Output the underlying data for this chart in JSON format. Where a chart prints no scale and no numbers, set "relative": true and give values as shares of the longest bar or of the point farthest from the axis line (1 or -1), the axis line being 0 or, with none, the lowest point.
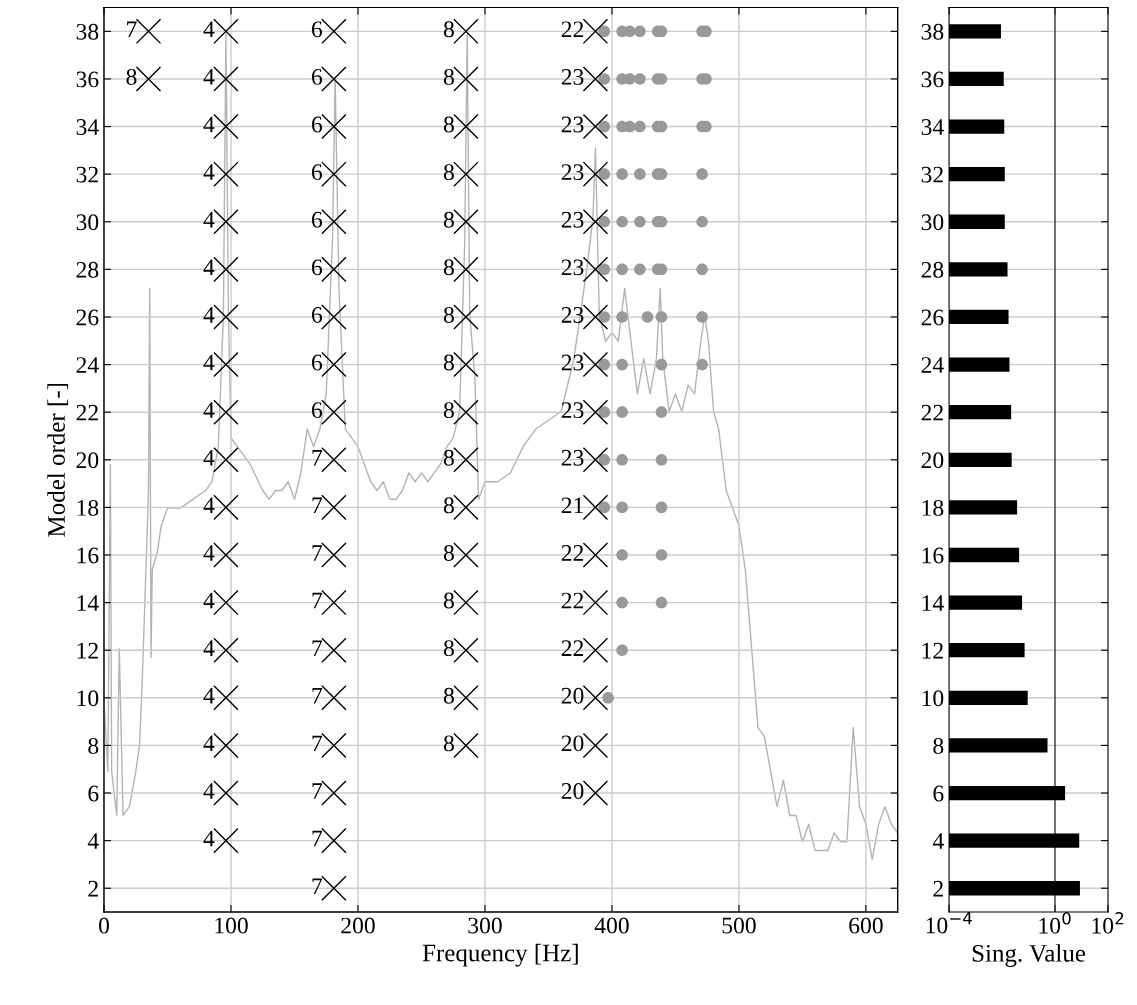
{
  "chart_data": [
    {
      "type": "scatter",
      "xlabel": "Frequency [Hz]",
      "ylabel": "Model order [-]",
      "xlim": [
        0,
        625
      ],
      "xticks": [
        0,
        100,
        200,
        300,
        400,
        500,
        600
      ],
      "ylim": [
        1,
        39
      ],
      "yticks": [
        2,
        4,
        6,
        8,
        10,
        12,
        14,
        16,
        18,
        20,
        22,
        24,
        26,
        28,
        30,
        32,
        34,
        36,
        38
      ],
      "grid": true,
      "series": [
        {
          "marker": "circle",
          "color": "#999999",
          "x": [
            394,
            408,
            414,
            422,
            436,
            439,
            471,
            474,
            394,
            408,
            414,
            422,
            436,
            439,
            471,
            474,
            394,
            408,
            414,
            422,
            436,
            439,
            471,
            474,
            394,
            408,
            422,
            436,
            439,
            471,
            394,
            408,
            422,
            436,
            439,
            471,
            394,
            408,
            422,
            436,
            439,
            471,
            394,
            408,
            428,
            439,
            471,
            394,
            408,
            439,
            471,
            394,
            408,
            439,
            394,
            408,
            439,
            394,
            408,
            439,
            408,
            439,
            408,
            439,
            408,
            397
          ],
          "values": [
            38,
            38,
            38,
            38,
            38,
            38,
            38,
            38,
            36,
            36,
            36,
            36,
            36,
            36,
            36,
            36,
            34,
            34,
            34,
            34,
            34,
            34,
            34,
            34,
            32,
            32,
            32,
            32,
            32,
            32,
            30,
            30,
            30,
            30,
            30,
            30,
            28,
            28,
            28,
            28,
            28,
            28,
            26,
            26,
            26,
            26,
            26,
            24,
            24,
            24,
            24,
            22,
            22,
            22,
            20,
            20,
            20,
            18,
            18,
            18,
            16,
            16,
            14,
            14,
            12,
            10
          ]
        },
        {
          "marker": "cross",
          "color": "#000000",
          "x": [
            35,
            35
          ],
          "values": [
            38,
            36
          ]
        },
        {
          "marker": "cross",
          "color": "#000000",
          "x": [
            96,
            96,
            96,
            96,
            96,
            96,
            96,
            96,
            96,
            96,
            96,
            96,
            96,
            96,
            96,
            96,
            96,
            96
          ],
          "values": [
            38,
            36,
            34,
            32,
            30,
            28,
            26,
            24,
            22,
            20,
            18,
            16,
            14,
            12,
            10,
            8,
            6,
            4
          ]
        },
        {
          "marker": "cross",
          "color": "#000000",
          "x": [
            181,
            181,
            181,
            181,
            181,
            181,
            181,
            181,
            181,
            181,
            181,
            181,
            181,
            181,
            181,
            181,
            181,
            181,
            181
          ],
          "values": [
            38,
            36,
            34,
            32,
            30,
            28,
            26,
            24,
            22,
            20,
            18,
            16,
            14,
            12,
            10,
            8,
            6,
            4,
            2
          ]
        },
        {
          "marker": "cross",
          "color": "#000000",
          "x": [
            285,
            285,
            285,
            285,
            285,
            285,
            285,
            285,
            285,
            285,
            285,
            285,
            285,
            285,
            285,
            285
          ],
          "values": [
            38,
            36,
            34,
            32,
            30,
            28,
            26,
            24,
            22,
            20,
            18,
            16,
            14,
            12,
            10,
            8
          ]
        },
        {
          "marker": "cross",
          "color": "#000000",
          "x": [
            387,
            387,
            387,
            387,
            387,
            387,
            387,
            387,
            387,
            387,
            387,
            387,
            387,
            387,
            387,
            387,
            387
          ],
          "values": [
            38,
            36,
            34,
            32,
            30,
            28,
            26,
            24,
            22,
            20,
            18,
            16,
            14,
            12,
            10,
            8,
            6
          ]
        }
      ],
      "annotations": [
        {
          "text": "7",
          "x": 35,
          "y": 38
        },
        {
          "text": "8",
          "x": 35,
          "y": 36
        },
        {
          "text": "4",
          "x": 96,
          "y": 38
        },
        {
          "text": "4",
          "x": 96,
          "y": 36
        },
        {
          "text": "4",
          "x": 96,
          "y": 34
        },
        {
          "text": "4",
          "x": 96,
          "y": 32
        },
        {
          "text": "4",
          "x": 96,
          "y": 30
        },
        {
          "text": "4",
          "x": 96,
          "y": 28
        },
        {
          "text": "4",
          "x": 96,
          "y": 26
        },
        {
          "text": "4",
          "x": 96,
          "y": 24
        },
        {
          "text": "4",
          "x": 96,
          "y": 22
        },
        {
          "text": "4",
          "x": 96,
          "y": 20
        },
        {
          "text": "4",
          "x": 96,
          "y": 18
        },
        {
          "text": "4",
          "x": 96,
          "y": 16
        },
        {
          "text": "4",
          "x": 96,
          "y": 14
        },
        {
          "text": "4",
          "x": 96,
          "y": 12
        },
        {
          "text": "4",
          "x": 96,
          "y": 10
        },
        {
          "text": "4",
          "x": 96,
          "y": 8
        },
        {
          "text": "4",
          "x": 96,
          "y": 6
        },
        {
          "text": "4",
          "x": 96,
          "y": 4
        },
        {
          "text": "6",
          "x": 181,
          "y": 38
        },
        {
          "text": "6",
          "x": 181,
          "y": 36
        },
        {
          "text": "6",
          "x": 181,
          "y": 34
        },
        {
          "text": "6",
          "x": 181,
          "y": 32
        },
        {
          "text": "6",
          "x": 181,
          "y": 30
        },
        {
          "text": "6",
          "x": 181,
          "y": 28
        },
        {
          "text": "6",
          "x": 181,
          "y": 26
        },
        {
          "text": "6",
          "x": 181,
          "y": 24
        },
        {
          "text": "6",
          "x": 181,
          "y": 22
        },
        {
          "text": "7",
          "x": 181,
          "y": 20
        },
        {
          "text": "7",
          "x": 181,
          "y": 18
        },
        {
          "text": "7",
          "x": 181,
          "y": 16
        },
        {
          "text": "7",
          "x": 181,
          "y": 14
        },
        {
          "text": "7",
          "x": 181,
          "y": 12
        },
        {
          "text": "7",
          "x": 181,
          "y": 10
        },
        {
          "text": "7",
          "x": 181,
          "y": 8
        },
        {
          "text": "7",
          "x": 181,
          "y": 6
        },
        {
          "text": "7",
          "x": 181,
          "y": 4
        },
        {
          "text": "7",
          "x": 181,
          "y": 2
        },
        {
          "text": "8",
          "x": 285,
          "y": 38
        },
        {
          "text": "8",
          "x": 285,
          "y": 36
        },
        {
          "text": "8",
          "x": 285,
          "y": 34
        },
        {
          "text": "8",
          "x": 285,
          "y": 32
        },
        {
          "text": "8",
          "x": 285,
          "y": 30
        },
        {
          "text": "8",
          "x": 285,
          "y": 28
        },
        {
          "text": "8",
          "x": 285,
          "y": 26
        },
        {
          "text": "8",
          "x": 285,
          "y": 24
        },
        {
          "text": "8",
          "x": 285,
          "y": 22
        },
        {
          "text": "8",
          "x": 285,
          "y": 20
        },
        {
          "text": "8",
          "x": 285,
          "y": 18
        },
        {
          "text": "8",
          "x": 285,
          "y": 16
        },
        {
          "text": "8",
          "x": 285,
          "y": 14
        },
        {
          "text": "8",
          "x": 285,
          "y": 12
        },
        {
          "text": "8",
          "x": 285,
          "y": 10
        },
        {
          "text": "8",
          "x": 285,
          "y": 8
        },
        {
          "text": "22",
          "x": 387,
          "y": 38
        },
        {
          "text": "23",
          "x": 387,
          "y": 36
        },
        {
          "text": "23",
          "x": 387,
          "y": 34
        },
        {
          "text": "23",
          "x": 387,
          "y": 32
        },
        {
          "text": "23",
          "x": 387,
          "y": 30
        },
        {
          "text": "23",
          "x": 387,
          "y": 28
        },
        {
          "text": "23",
          "x": 387,
          "y": 26
        },
        {
          "text": "23",
          "x": 387,
          "y": 24
        },
        {
          "text": "23",
          "x": 387,
          "y": 22
        },
        {
          "text": "23",
          "x": 387,
          "y": 20
        },
        {
          "text": "21",
          "x": 387,
          "y": 18
        },
        {
          "text": "22",
          "x": 387,
          "y": 16
        },
        {
          "text": "22",
          "x": 387,
          "y": 14
        },
        {
          "text": "22",
          "x": 387,
          "y": 12
        },
        {
          "text": "20",
          "x": 387,
          "y": 10
        },
        {
          "text": "20",
          "x": 387,
          "y": 8
        },
        {
          "text": "20",
          "x": 387,
          "y": 6
        }
      ]
    },
    {
      "type": "line",
      "relative": true,
      "tick_labels": false,
      "xlim": [
        0,
        625
      ],
      "series": [
        {
          "color": "#b3b3b3",
          "x": [
            0,
            3,
            5,
            6,
            10,
            12,
            15,
            20,
            25,
            28,
            30,
            33,
            35,
            36,
            37,
            38,
            42,
            45,
            50,
            55,
            60,
            70,
            80,
            85,
            90,
            94,
            96,
            98,
            100,
            105,
            115,
            125,
            130,
            135,
            140,
            145,
            150,
            155,
            160,
            165,
            170,
            175,
            180,
            182,
            185,
            190,
            195,
            200,
            205,
            210,
            215,
            220,
            225,
            230,
            235,
            240,
            245,
            250,
            255,
            260,
            265,
            270,
            275,
            280,
            284,
            286,
            288,
            292,
            295,
            300,
            310,
            320,
            330,
            340,
            350,
            360,
            370,
            375,
            380,
            385,
            387,
            390,
            395,
            400,
            405,
            410,
            415,
            420,
            425,
            430,
            435,
            438,
            440,
            445,
            450,
            455,
            460,
            465,
            470,
            473,
            476,
            480,
            484,
            490,
            495,
            500,
            505,
            510,
            515,
            520,
            525,
            530,
            535,
            540,
            545,
            550,
            555,
            560,
            570,
            575,
            580,
            585,
            590,
            595,
            600,
            605,
            610,
            615,
            620,
            625
          ],
          "values": [
            0.24,
            0.16,
            0.51,
            0.16,
            0.11,
            0.3,
            0.11,
            0.12,
            0.16,
            0.19,
            0.26,
            0.39,
            0.48,
            0.71,
            0.29,
            0.39,
            0.41,
            0.44,
            0.46,
            0.46,
            0.46,
            0.47,
            0.48,
            0.49,
            0.53,
            0.68,
            1.0,
            0.68,
            0.54,
            0.53,
            0.51,
            0.48,
            0.47,
            0.48,
            0.48,
            0.49,
            0.47,
            0.5,
            0.55,
            0.53,
            0.55,
            0.59,
            0.77,
            0.95,
            0.71,
            0.55,
            0.54,
            0.53,
            0.51,
            0.49,
            0.48,
            0.49,
            0.47,
            0.47,
            0.48,
            0.5,
            0.49,
            0.5,
            0.49,
            0.5,
            0.51,
            0.53,
            0.54,
            0.57,
            0.76,
            1.0,
            0.68,
            0.61,
            0.47,
            0.49,
            0.49,
            0.5,
            0.53,
            0.55,
            0.56,
            0.57,
            0.63,
            0.68,
            0.73,
            0.79,
            0.87,
            0.68,
            0.65,
            0.66,
            0.65,
            0.71,
            0.65,
            0.59,
            0.63,
            0.59,
            0.63,
            0.71,
            0.63,
            0.57,
            0.59,
            0.57,
            0.6,
            0.59,
            0.65,
            0.68,
            0.65,
            0.57,
            0.55,
            0.48,
            0.46,
            0.44,
            0.39,
            0.3,
            0.21,
            0.2,
            0.16,
            0.12,
            0.15,
            0.11,
            0.11,
            0.08,
            0.1,
            0.07,
            0.07,
            0.09,
            0.08,
            0.08,
            0.21,
            0.12,
            0.1,
            0.06,
            0.1,
            0.12,
            0.1,
            0.09
          ]
        }
      ]
    },
    {
      "type": "bar",
      "orientation": "horizontal",
      "xlabel": "Sing. Value",
      "log": "x",
      "xlim": [
        0.0001,
        100
      ],
      "xticks": [
        {
          "value": 0.0001,
          "label": "10$^{−4}$"
        },
        {
          "value": 1,
          "label": "10$^{0}$"
        },
        {
          "value": 100,
          "label": "10$^{2}$"
        }
      ],
      "grid": "y",
      "color": "#000000",
      "categories": [
        "38",
        "36",
        "34",
        "32",
        "30",
        "28",
        "26",
        "24",
        "22",
        "20",
        "18",
        "16",
        "14",
        "12",
        "10",
        "8",
        "6",
        "4",
        "2"
      ],
      "values": [
        0.009,
        0.0115,
        0.012,
        0.0126,
        0.0126,
        0.016,
        0.0175,
        0.019,
        0.022,
        0.023,
        0.037,
        0.044,
        0.057,
        0.071,
        0.093,
        0.52,
        2.4,
        8.2,
        8.7
      ],
      "ref_lines": [
        {
          "axis": "x",
          "value": 1,
          "color": "#333333"
        }
      ]
    }
  ]
}
